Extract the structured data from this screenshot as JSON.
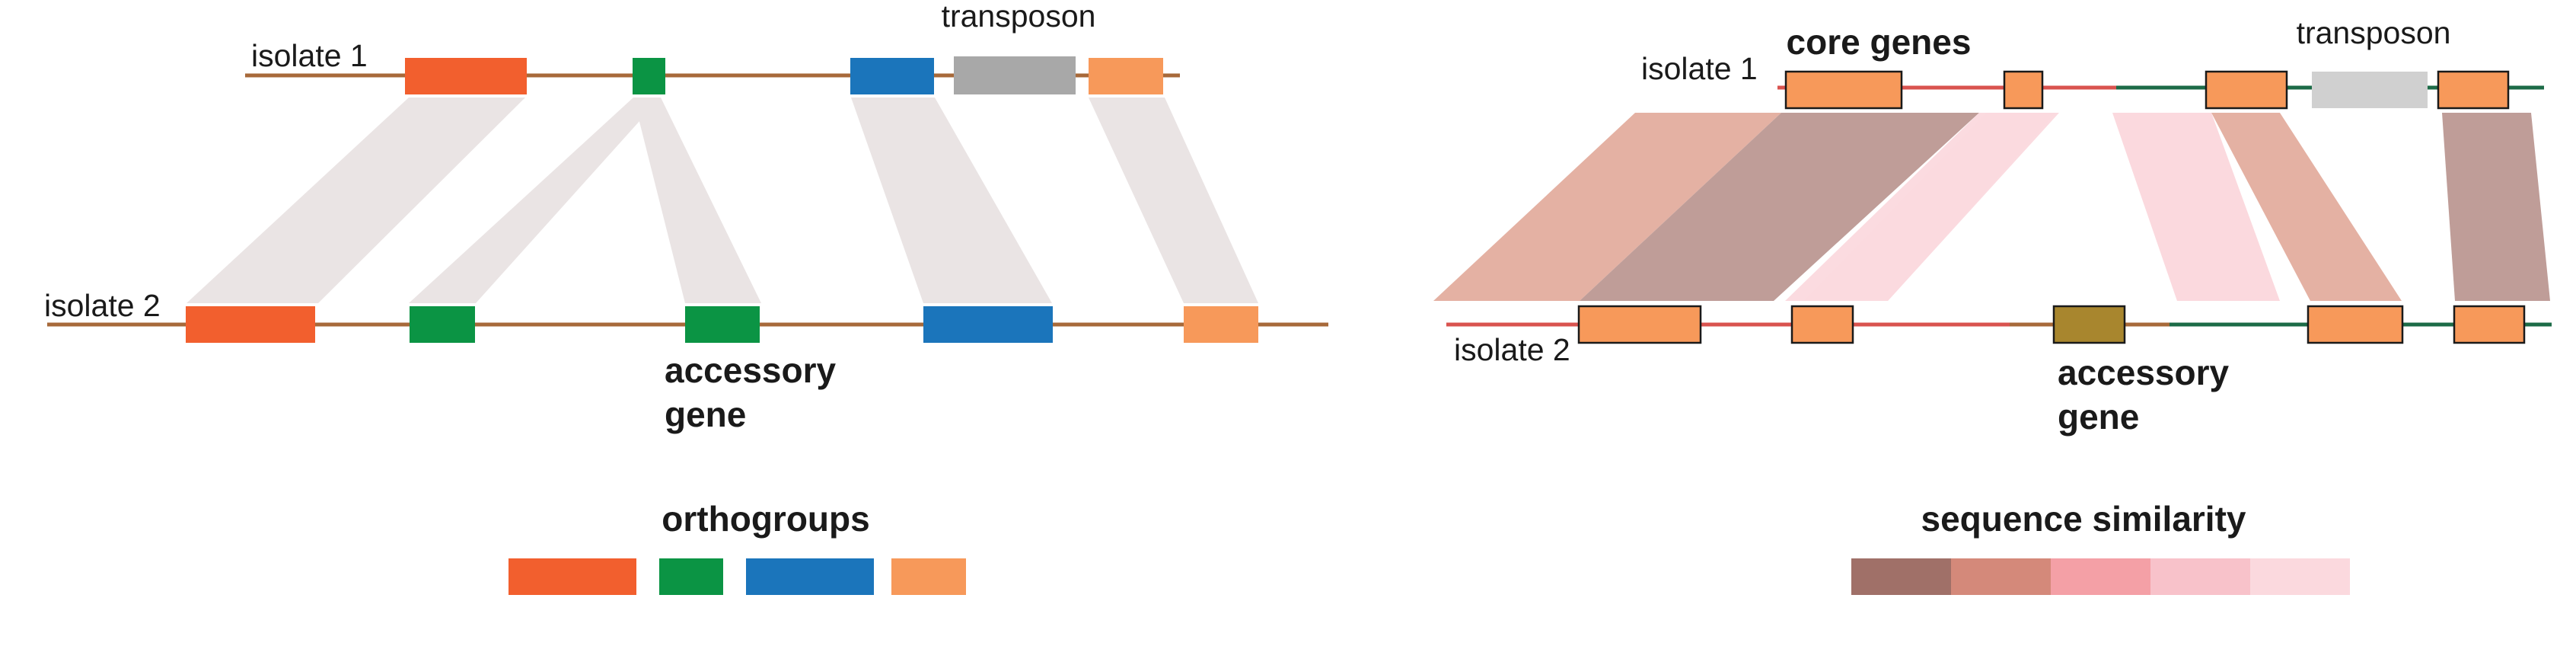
{
  "left_panel": {
    "isolate1_label": "isolate 1",
    "isolate2_label": "isolate 2",
    "transposon_label": "transposon",
    "accessory_line1": "accessory",
    "accessory_line2": "gene",
    "legend_title": "orthogroups",
    "legend_colors": [
      "#f25f2e",
      "#0b9444",
      "#1b75bb",
      "#f7995a"
    ]
  },
  "right_panel": {
    "isolate1_label": "isolate 1",
    "isolate2_label": "isolate 2",
    "core_genes_label": "core genes",
    "transposon_label": "transposon",
    "accessory_line1": "accessory",
    "accessory_line2": "gene",
    "legend_title": "sequence similarity",
    "legend_colors": [
      "#a07068",
      "#d4897a",
      "#f4a0a6",
      "#f8c2ca",
      "#fbd9de"
    ]
  },
  "colors": {
    "line_brown": "#a7693a",
    "line_red": "#d9534f",
    "line_green": "#1c6b47",
    "gene_orange_red": "#f25f2e",
    "gene_green": "#0b9444",
    "gene_blue": "#1b75bb",
    "gene_light_orange": "#f7995a",
    "transposon_grey": "#a8a8a8",
    "transposon_light_grey": "#d0d0d0",
    "accessory_olive": "#a8862e"
  }
}
